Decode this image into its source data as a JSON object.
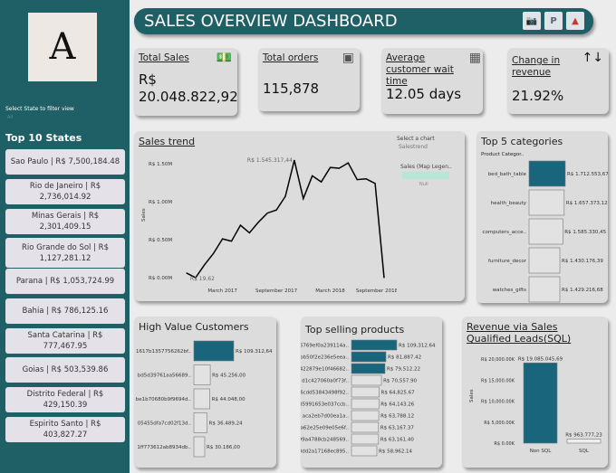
{
  "sidebar": {
    "logo_letter": "A",
    "filter_label": "Select State to filter view",
    "filter_value": "All",
    "top_states_title": "Top 10 States",
    "states": [
      "Sao Paulo | R$ 7,500,184.48",
      "Rio de Janeiro | R$ 2,736,014.92",
      "Minas Gerais | R$ 2,301,409.15",
      "Rio Grande do Sol | R$ 1,127,281.12",
      "Parana | R$ 1,053,724.99",
      "Bahia | R$ 786,125.16",
      "Santa Catarina | R$ 777,467.95",
      "Goias | R$ 503,539.86",
      "Distrito Federal | R$ 429,150.39",
      "Espirito Santo | R$ 403,827.27"
    ]
  },
  "header": {
    "title": "SALES OVERVIEW DASHBOARD",
    "icons": [
      "camera-icon",
      "powerpoint-icon",
      "pdf-icon"
    ]
  },
  "kpis": [
    {
      "label": "Total Sales",
      "value": "R$ 20.048.822,92",
      "icon": "money-icon"
    },
    {
      "label": "Total orders",
      "value": "115,878",
      "icon": "box-icon"
    },
    {
      "label": "Average customer wait time",
      "value": "12.05 days",
      "icon": "calendar-icon"
    },
    {
      "label": "Change in revenue",
      "value": "21.92%",
      "icon": "sort-arrows-icon"
    }
  ],
  "trend": {
    "title": "Sales trend",
    "select_label": "Select a chart",
    "select_value": "Salestrend",
    "legend_title": "Sales (Map Legen..",
    "legend_value": "Null"
  },
  "chart_data": [
    {
      "type": "line",
      "title": "Sales trend",
      "ylabel": "Sales",
      "ylim": [
        0,
        1.5
      ],
      "yticks": [
        "R$ 0.00M",
        "R$ 0.50M",
        "R$ 1.00M",
        "R$ 1.50M"
      ],
      "xticks": [
        "March 2017",
        "September 2017",
        "March 2018",
        "September 2018"
      ],
      "x": [
        "2016-11",
        "2016-12",
        "2017-01",
        "2017-02",
        "2017-03",
        "2017-04",
        "2017-05",
        "2017-06",
        "2017-07",
        "2017-08",
        "2017-09",
        "2017-10",
        "2017-11",
        "2017-12",
        "2018-01",
        "2018-02",
        "2018-03",
        "2018-04",
        "2018-05",
        "2018-06",
        "2018-07",
        "2018-08",
        "2018-09"
      ],
      "values": [
        0.06,
        2e-05,
        0.17,
        0.32,
        0.51,
        0.48,
        0.69,
        0.59,
        0.73,
        0.85,
        0.89,
        1.07,
        1.545,
        1.04,
        1.34,
        1.26,
        1.45,
        1.44,
        1.51,
        1.29,
        1.3,
        1.24,
        0.0
      ],
      "annotations": [
        "R$ 1.545.317,44",
        "R$ 19,62"
      ]
    },
    {
      "type": "bar",
      "title": "Top 5 categories",
      "axis_label": "Product Categor..",
      "categories": [
        "bed_bath_table",
        "health_beauty",
        "computers_acce..",
        "furniture_decor",
        "watches_gifts"
      ],
      "values": [
        1712553.67,
        1657373.12,
        1585330.45,
        1430176.39,
        1429216.68
      ],
      "labels": [
        "R$ 1.712.553,67",
        "R$ 1.657.373,12",
        "R$ 1.585.330,45",
        "R$ 1.430.176,39",
        "R$ 1.429.216,68"
      ],
      "highlight": 1
    },
    {
      "type": "bar",
      "title": "High Value Customers",
      "categories": [
        "1617b1357756262bf..",
        "bd5d39761aa56689..",
        "be1b70680b9f9694d..",
        "05455dfa7cd02f13d..",
        "1ff773612ab8934db.."
      ],
      "values": [
        109312.64,
        45256.0,
        44048.0,
        36489.24,
        30186.0
      ],
      "labels": [
        "R$ 109.312,64",
        "R$ 45.256,00",
        "R$ 44.048,00",
        "R$ 36.489,24",
        "R$ 30.186,00"
      ],
      "highlight": 1
    },
    {
      "type": "bar",
      "title": "Top selling products",
      "categories": [
        "5769ef0a239114a..",
        "bb50f2e236e5eea..",
        "422879e10f46682..",
        "d1c427060a0f73f..",
        "6cdd53843498f92..",
        "d5991653e037ccb..",
        "aca2eb7d00ea1a..",
        "a62e25e09e05e6f..",
        "99a4788cb248569..",
        "3dd2a17168ec895.."
      ],
      "values": [
        109312.64,
        81887.42,
        79512.22,
        70557.9,
        64825.67,
        64143.26,
        63788.12,
        63167.37,
        63161.4,
        58962.14
      ],
      "labels": [
        "R$ 109,312.64",
        "R$ 81,887.42",
        "R$ 79,512.22",
        "R$ 70,557.90",
        "R$ 64,825.67",
        "R$ 64,143.26",
        "R$ 63,788.12",
        "R$ 63,167.37",
        "R$ 63,161.40",
        "R$ 58,962.14"
      ],
      "highlight": 3
    },
    {
      "type": "bar",
      "title": "Revenue via Sales Qualified Leads(SQL)",
      "ylabel": "Sales",
      "ylim": [
        0,
        20000000
      ],
      "yticks": [
        "R$ 0.00K",
        "R$ 5,000.00K",
        "R$ 10,000.00K",
        "R$ 15,000.00K",
        "R$ 20,000.00K"
      ],
      "categories": [
        "Non SQL",
        "SQL"
      ],
      "values": [
        19085045.69,
        963777.23
      ],
      "labels": [
        "R$ 19.085.045,69",
        "R$ 963.777,23"
      ],
      "highlight": 1
    }
  ],
  "colors": {
    "sidebar": "#1f5f66",
    "accent": "#19667c",
    "card": "#dcdcdc",
    "background": "#ececec"
  }
}
